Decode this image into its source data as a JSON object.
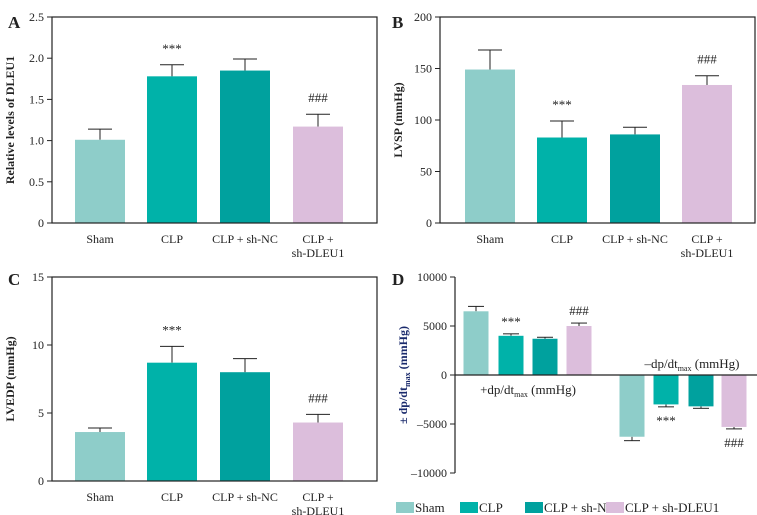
{
  "colors": {
    "Sham": "#8ecdc9",
    "CLP": "#00b2a9",
    "CLP + sh-NC": "#00a19e",
    "CLP + sh-DLEU1": "#dcbedc"
  },
  "legend": [
    "Sham",
    "CLP",
    "CLP + sh-NC",
    "CLP + sh-DLEU1"
  ],
  "chart_data": [
    {
      "panel": "A",
      "type": "bar",
      "ylabel": "Relative levels of DLEU1",
      "ylim": [
        0,
        2.5
      ],
      "yticks": [
        "0",
        "0.5",
        "1.0",
        "1.5",
        "2.0",
        "2.5"
      ],
      "categories": [
        "Sham",
        "CLP",
        "CLP + sh-NC",
        "CLP +\nsh-DLEU1"
      ],
      "values": [
        1.01,
        1.78,
        1.85,
        1.17
      ],
      "errors": [
        0.13,
        0.14,
        0.14,
        0.15
      ],
      "annotations": [
        "",
        "***",
        "",
        "###"
      ]
    },
    {
      "panel": "B",
      "type": "bar",
      "ylabel": "LVSP (mmHg)",
      "ylim": [
        0,
        200
      ],
      "yticks": [
        "0",
        "50",
        "100",
        "150",
        "200"
      ],
      "categories": [
        "Sham",
        "CLP",
        "CLP + sh-NC",
        "CLP +\nsh-DLEU1"
      ],
      "values": [
        149,
        83,
        86,
        134
      ],
      "errors": [
        19,
        16,
        7,
        9
      ],
      "annotations": [
        "",
        "***",
        "",
        "###"
      ]
    },
    {
      "panel": "C",
      "type": "bar",
      "ylabel": "LVEDP (mmHg)",
      "ylim": [
        0,
        15
      ],
      "yticks": [
        "0",
        "5",
        "10",
        "15"
      ],
      "categories": [
        "Sham",
        "CLP",
        "CLP + sh-NC",
        "CLP +\nsh-DLEU1"
      ],
      "values": [
        3.6,
        8.7,
        8.0,
        4.3
      ],
      "errors": [
        0.3,
        1.2,
        1.0,
        0.6
      ],
      "annotations": [
        "",
        "***",
        "",
        "###"
      ]
    },
    {
      "panel": "D",
      "type": "bar",
      "ylabel": "± dp/dt",
      "ylabel_sub": "max",
      "ylabel_unit": " (mmHg)",
      "ylim": [
        -10000,
        10000
      ],
      "yticks": [
        "-10000",
        "-5000",
        "0",
        "5000",
        "10000"
      ],
      "groups": [
        {
          "label": "+dp/dt",
          "label_sub": "max",
          "label_unit": " (mmHg)",
          "values": [
            6500,
            4000,
            3700,
            5000
          ],
          "errors": [
            500,
            200,
            150,
            300
          ],
          "annotations": [
            "",
            "***",
            "",
            "###"
          ]
        },
        {
          "label": "–dp/dt",
          "label_sub": "max",
          "label_unit": " (mmHg)",
          "values": [
            -6300,
            -3000,
            -3200,
            -5300
          ],
          "errors": [
            400,
            250,
            200,
            200
          ],
          "annotations": [
            "",
            "***",
            "",
            "###"
          ]
        }
      ],
      "legend_position": "bottom"
    }
  ]
}
